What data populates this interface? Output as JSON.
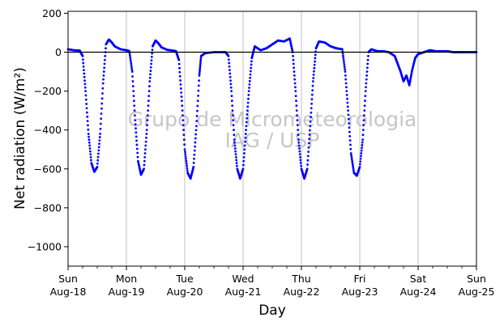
{
  "chart_data": {
    "type": "scatter",
    "title": "",
    "xlabel": "Day",
    "ylabel": "Net radiation (W/m²)",
    "ylim": [
      -1100,
      210
    ],
    "xlim_days": [
      0,
      7
    ],
    "grid": "vertical-major",
    "zero_line": true,
    "yticks": [
      200,
      0,
      -200,
      -400,
      -600,
      -800,
      -1000
    ],
    "ytick_labels": [
      "200",
      "0",
      "−200",
      "−400",
      "−600",
      "−800",
      "−1000"
    ],
    "xticks": [
      {
        "x": 0,
        "day": "Sun",
        "date": "Aug-18"
      },
      {
        "x": 1,
        "day": "Mon",
        "date": "Aug-19"
      },
      {
        "x": 2,
        "day": "Tue",
        "date": "Aug-20"
      },
      {
        "x": 3,
        "day": "Wed",
        "date": "Aug-21"
      },
      {
        "x": 4,
        "day": "Thu",
        "date": "Aug-22"
      },
      {
        "x": 5,
        "day": "Fri",
        "date": "Aug-23"
      },
      {
        "x": 6,
        "day": "Sat",
        "date": "Aug-24"
      },
      {
        "x": 7,
        "day": "Sun",
        "date": "Aug-25"
      }
    ],
    "watermark": [
      "Grupo de Micrometeorologia",
      "IAG / USP"
    ],
    "series": [
      {
        "color": "#0000ff",
        "points": [
          [
            0.0,
            15
          ],
          [
            0.1,
            10
          ],
          [
            0.2,
            8
          ],
          [
            0.25,
            -20
          ],
          [
            0.3,
            -200
          ],
          [
            0.35,
            -420
          ],
          [
            0.4,
            -570
          ],
          [
            0.45,
            -615
          ],
          [
            0.5,
            -590
          ],
          [
            0.55,
            -420
          ],
          [
            0.6,
            -160
          ],
          [
            0.65,
            40
          ],
          [
            0.7,
            65
          ],
          [
            0.75,
            50
          ],
          [
            0.8,
            30
          ],
          [
            0.9,
            15
          ],
          [
            1.0,
            10
          ],
          [
            1.05,
            5
          ],
          [
            1.1,
            -100
          ],
          [
            1.15,
            -350
          ],
          [
            1.2,
            -560
          ],
          [
            1.25,
            -630
          ],
          [
            1.3,
            -600
          ],
          [
            1.35,
            -400
          ],
          [
            1.4,
            -150
          ],
          [
            1.45,
            30
          ],
          [
            1.5,
            60
          ],
          [
            1.55,
            45
          ],
          [
            1.6,
            25
          ],
          [
            1.7,
            12
          ],
          [
            1.8,
            8
          ],
          [
            1.85,
            5
          ],
          [
            1.9,
            -40
          ],
          [
            1.95,
            -250
          ],
          [
            2.0,
            -500
          ],
          [
            2.05,
            -620
          ],
          [
            2.1,
            -650
          ],
          [
            2.15,
            -590
          ],
          [
            2.2,
            -380
          ],
          [
            2.25,
            -120
          ],
          [
            2.28,
            -20
          ],
          [
            2.35,
            -5
          ],
          [
            2.5,
            0
          ],
          [
            2.65,
            0
          ],
          [
            2.7,
            0
          ],
          [
            2.75,
            -20
          ],
          [
            2.8,
            -200
          ],
          [
            2.85,
            -450
          ],
          [
            2.9,
            -600
          ],
          [
            2.95,
            -650
          ],
          [
            3.0,
            -600
          ],
          [
            3.05,
            -400
          ],
          [
            3.1,
            -200
          ],
          [
            3.15,
            -30
          ],
          [
            3.2,
            30
          ],
          [
            3.3,
            10
          ],
          [
            3.4,
            20
          ],
          [
            3.5,
            40
          ],
          [
            3.6,
            60
          ],
          [
            3.7,
            55
          ],
          [
            3.8,
            70
          ],
          [
            3.85,
            0
          ],
          [
            3.9,
            -200
          ],
          [
            3.95,
            -450
          ],
          [
            4.0,
            -600
          ],
          [
            4.05,
            -650
          ],
          [
            4.1,
            -600
          ],
          [
            4.15,
            -380
          ],
          [
            4.2,
            -150
          ],
          [
            4.25,
            20
          ],
          [
            4.3,
            55
          ],
          [
            4.4,
            50
          ],
          [
            4.5,
            30
          ],
          [
            4.6,
            20
          ],
          [
            4.7,
            15
          ],
          [
            4.75,
            -100
          ],
          [
            4.8,
            -300
          ],
          [
            4.85,
            -520
          ],
          [
            4.9,
            -620
          ],
          [
            4.95,
            -635
          ],
          [
            5.0,
            -590
          ],
          [
            5.05,
            -450
          ],
          [
            5.1,
            -200
          ],
          [
            5.15,
            0
          ],
          [
            5.2,
            15
          ],
          [
            5.3,
            5
          ],
          [
            5.4,
            5
          ],
          [
            5.5,
            0
          ],
          [
            5.6,
            -20
          ],
          [
            5.65,
            -60
          ],
          [
            5.7,
            -100
          ],
          [
            5.75,
            -150
          ],
          [
            5.8,
            -120
          ],
          [
            5.85,
            -170
          ],
          [
            5.9,
            -90
          ],
          [
            5.95,
            -30
          ],
          [
            6.0,
            -10
          ],
          [
            6.1,
            0
          ],
          [
            6.2,
            10
          ],
          [
            6.3,
            5
          ],
          [
            6.4,
            5
          ],
          [
            6.5,
            5
          ],
          [
            6.6,
            0
          ],
          [
            6.7,
            0
          ],
          [
            6.8,
            0
          ],
          [
            6.9,
            0
          ],
          [
            7.0,
            0
          ]
        ]
      }
    ]
  }
}
